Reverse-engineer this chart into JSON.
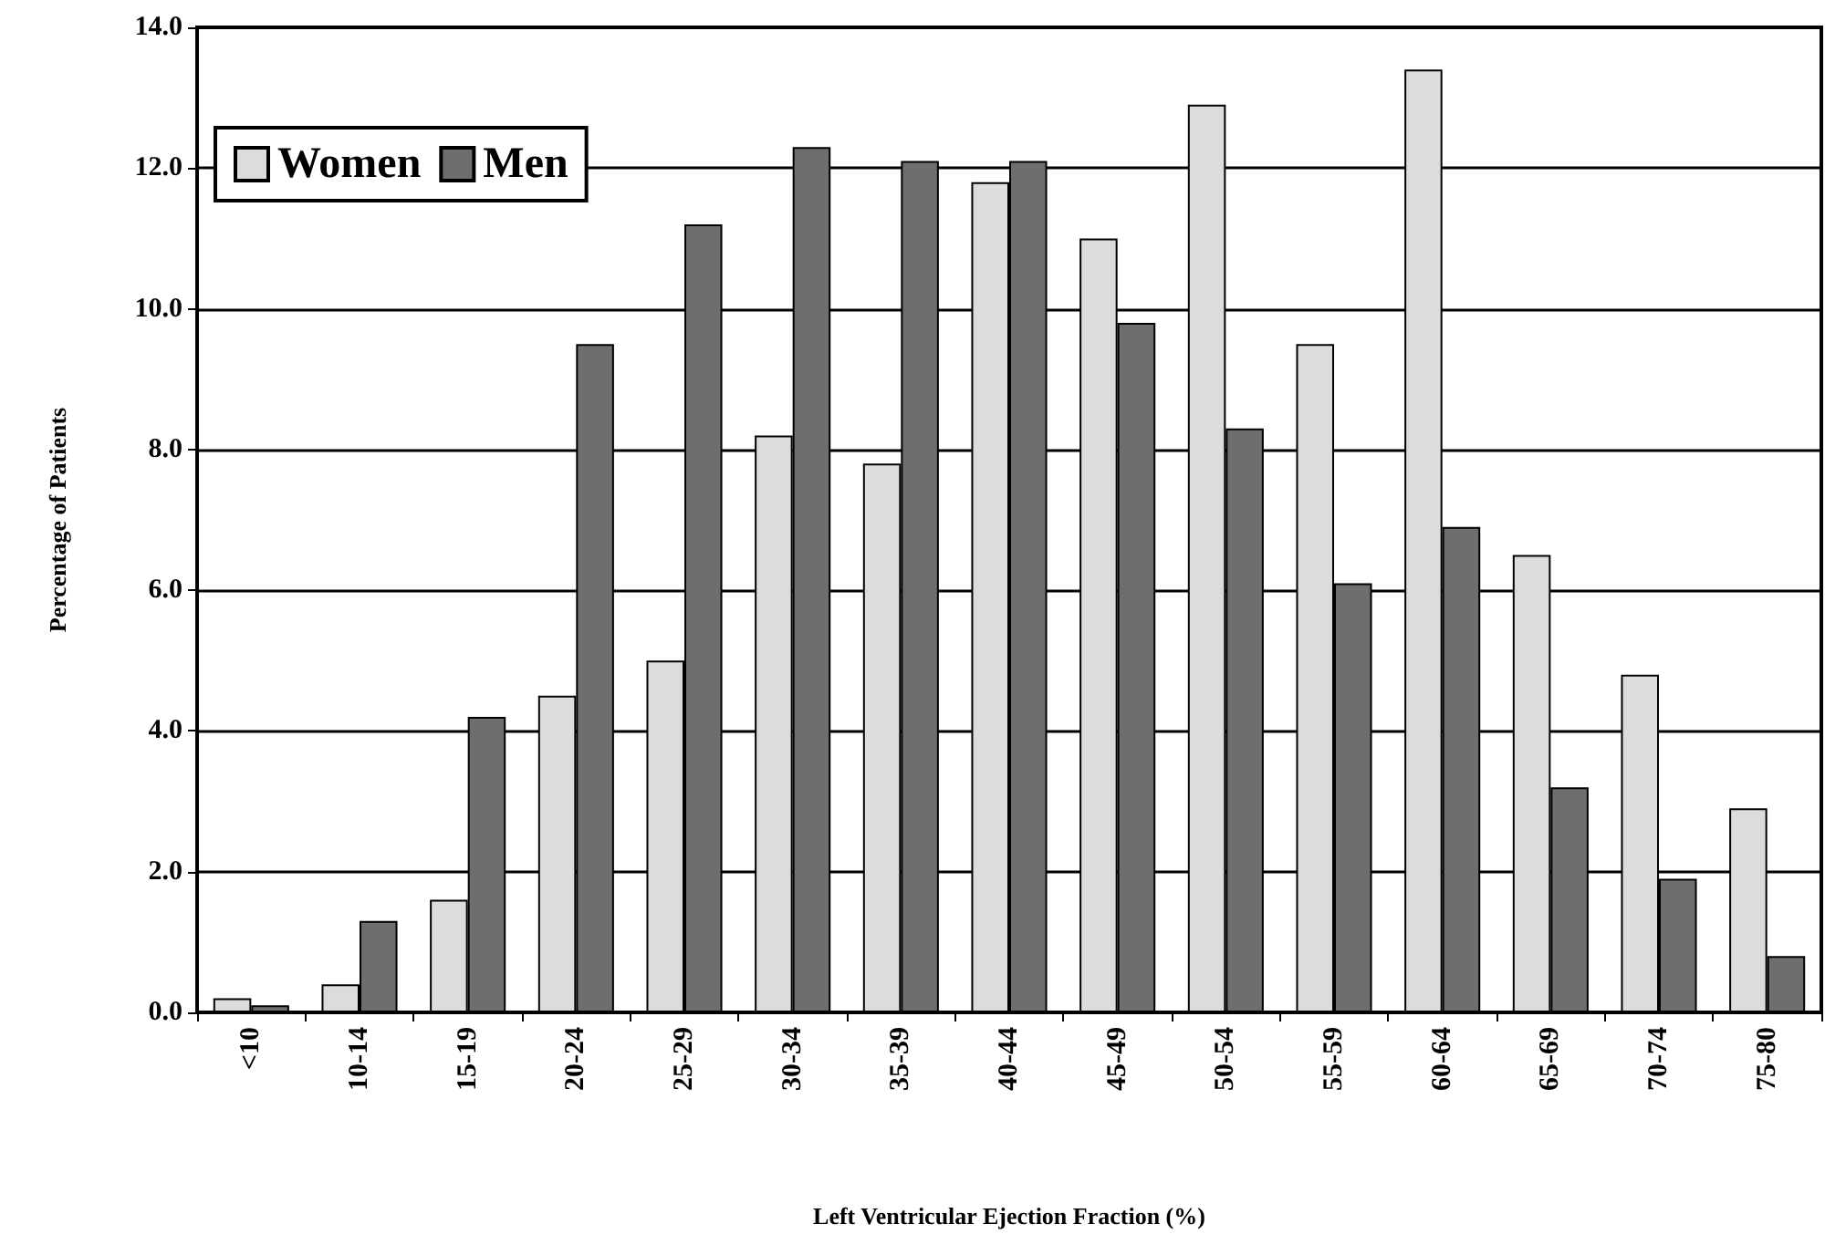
{
  "chart_data": {
    "type": "bar",
    "xlabel": "Left Ventricular Ejection Fraction (%)",
    "ylabel": "Percentage of Patients",
    "categories": [
      "<10",
      "10-14",
      "15-19",
      "20-24",
      "25-29",
      "30-34",
      "35-39",
      "40-44",
      "45-49",
      "50-54",
      "55-59",
      "60-64",
      "65-69",
      "70-74",
      "75-80"
    ],
    "series": [
      {
        "name": "Women",
        "color": "#dcdcdc",
        "values": [
          0.2,
          0.4,
          1.6,
          4.5,
          5.0,
          8.2,
          7.8,
          11.8,
          11.0,
          12.9,
          9.5,
          13.4,
          6.5,
          4.8,
          2.9
        ]
      },
      {
        "name": "Men",
        "color": "#6e6e6e",
        "values": [
          0.1,
          1.3,
          4.2,
          9.5,
          11.2,
          12.3,
          12.1,
          12.1,
          9.8,
          8.3,
          6.1,
          6.9,
          3.2,
          1.9,
          0.8
        ]
      }
    ],
    "ylim": [
      0,
      14
    ],
    "yticks": [
      {
        "value": 0,
        "label": "0.0"
      },
      {
        "value": 2,
        "label": "2.0"
      },
      {
        "value": 4,
        "label": "4.0"
      },
      {
        "value": 6,
        "label": "6.0"
      },
      {
        "value": 8,
        "label": "8.0"
      },
      {
        "value": 10,
        "label": "10.0"
      },
      {
        "value": 12,
        "label": "12.0"
      },
      {
        "value": 14,
        "label": "14.0"
      }
    ],
    "grid": "y",
    "legend": "top left"
  }
}
